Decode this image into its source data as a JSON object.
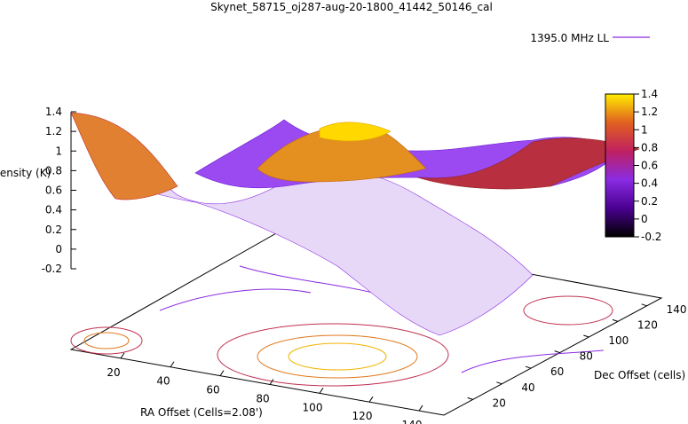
{
  "chart_data": {
    "type": "surface",
    "title": "Skynet_58715_oj287-aug-20-1800_41442_50146_cal",
    "legend": {
      "label": "1395.0 MHz LL",
      "color": "#8a2be2",
      "placement": "top-right"
    },
    "zlabel": "Intensity (K)",
    "xlabel": "RA Offset (Cells=2.08')",
    "ylabel": "Dec Offset (cells)",
    "z_ticks": [
      "1.4",
      "1.2",
      "1",
      "0.8",
      "0.6",
      "0.4",
      "0.2",
      "0",
      "-0.2"
    ],
    "x_ticks": [
      "20",
      "40",
      "60",
      "80",
      "100",
      "120",
      "140"
    ],
    "y_ticks": [
      "20",
      "40",
      "60",
      "80",
      "100",
      "120",
      "140"
    ],
    "colorbar_ticks": [
      "1.4",
      "1.2",
      "1",
      "0.8",
      "0.6",
      "0.4",
      "0.2",
      "0",
      "-0.2"
    ],
    "zlim": [
      -0.2,
      1.4
    ],
    "xlim": [
      0,
      150
    ],
    "ylim": [
      0,
      150
    ],
    "surface_features": [
      {
        "description": "peak",
        "x": 95,
        "y": 75,
        "z": 1.35
      },
      {
        "description": "edge-high",
        "x": 0,
        "y": 0,
        "z": 1.4
      },
      {
        "description": "minimum",
        "x": 140,
        "y": 40,
        "z": -0.2
      }
    ],
    "colormap": [
      "#000000",
      "#5a00a0",
      "#8a2be2",
      "#c03060",
      "#e05a20",
      "#f0a000",
      "#ffff00"
    ],
    "contours_on_base": true
  }
}
